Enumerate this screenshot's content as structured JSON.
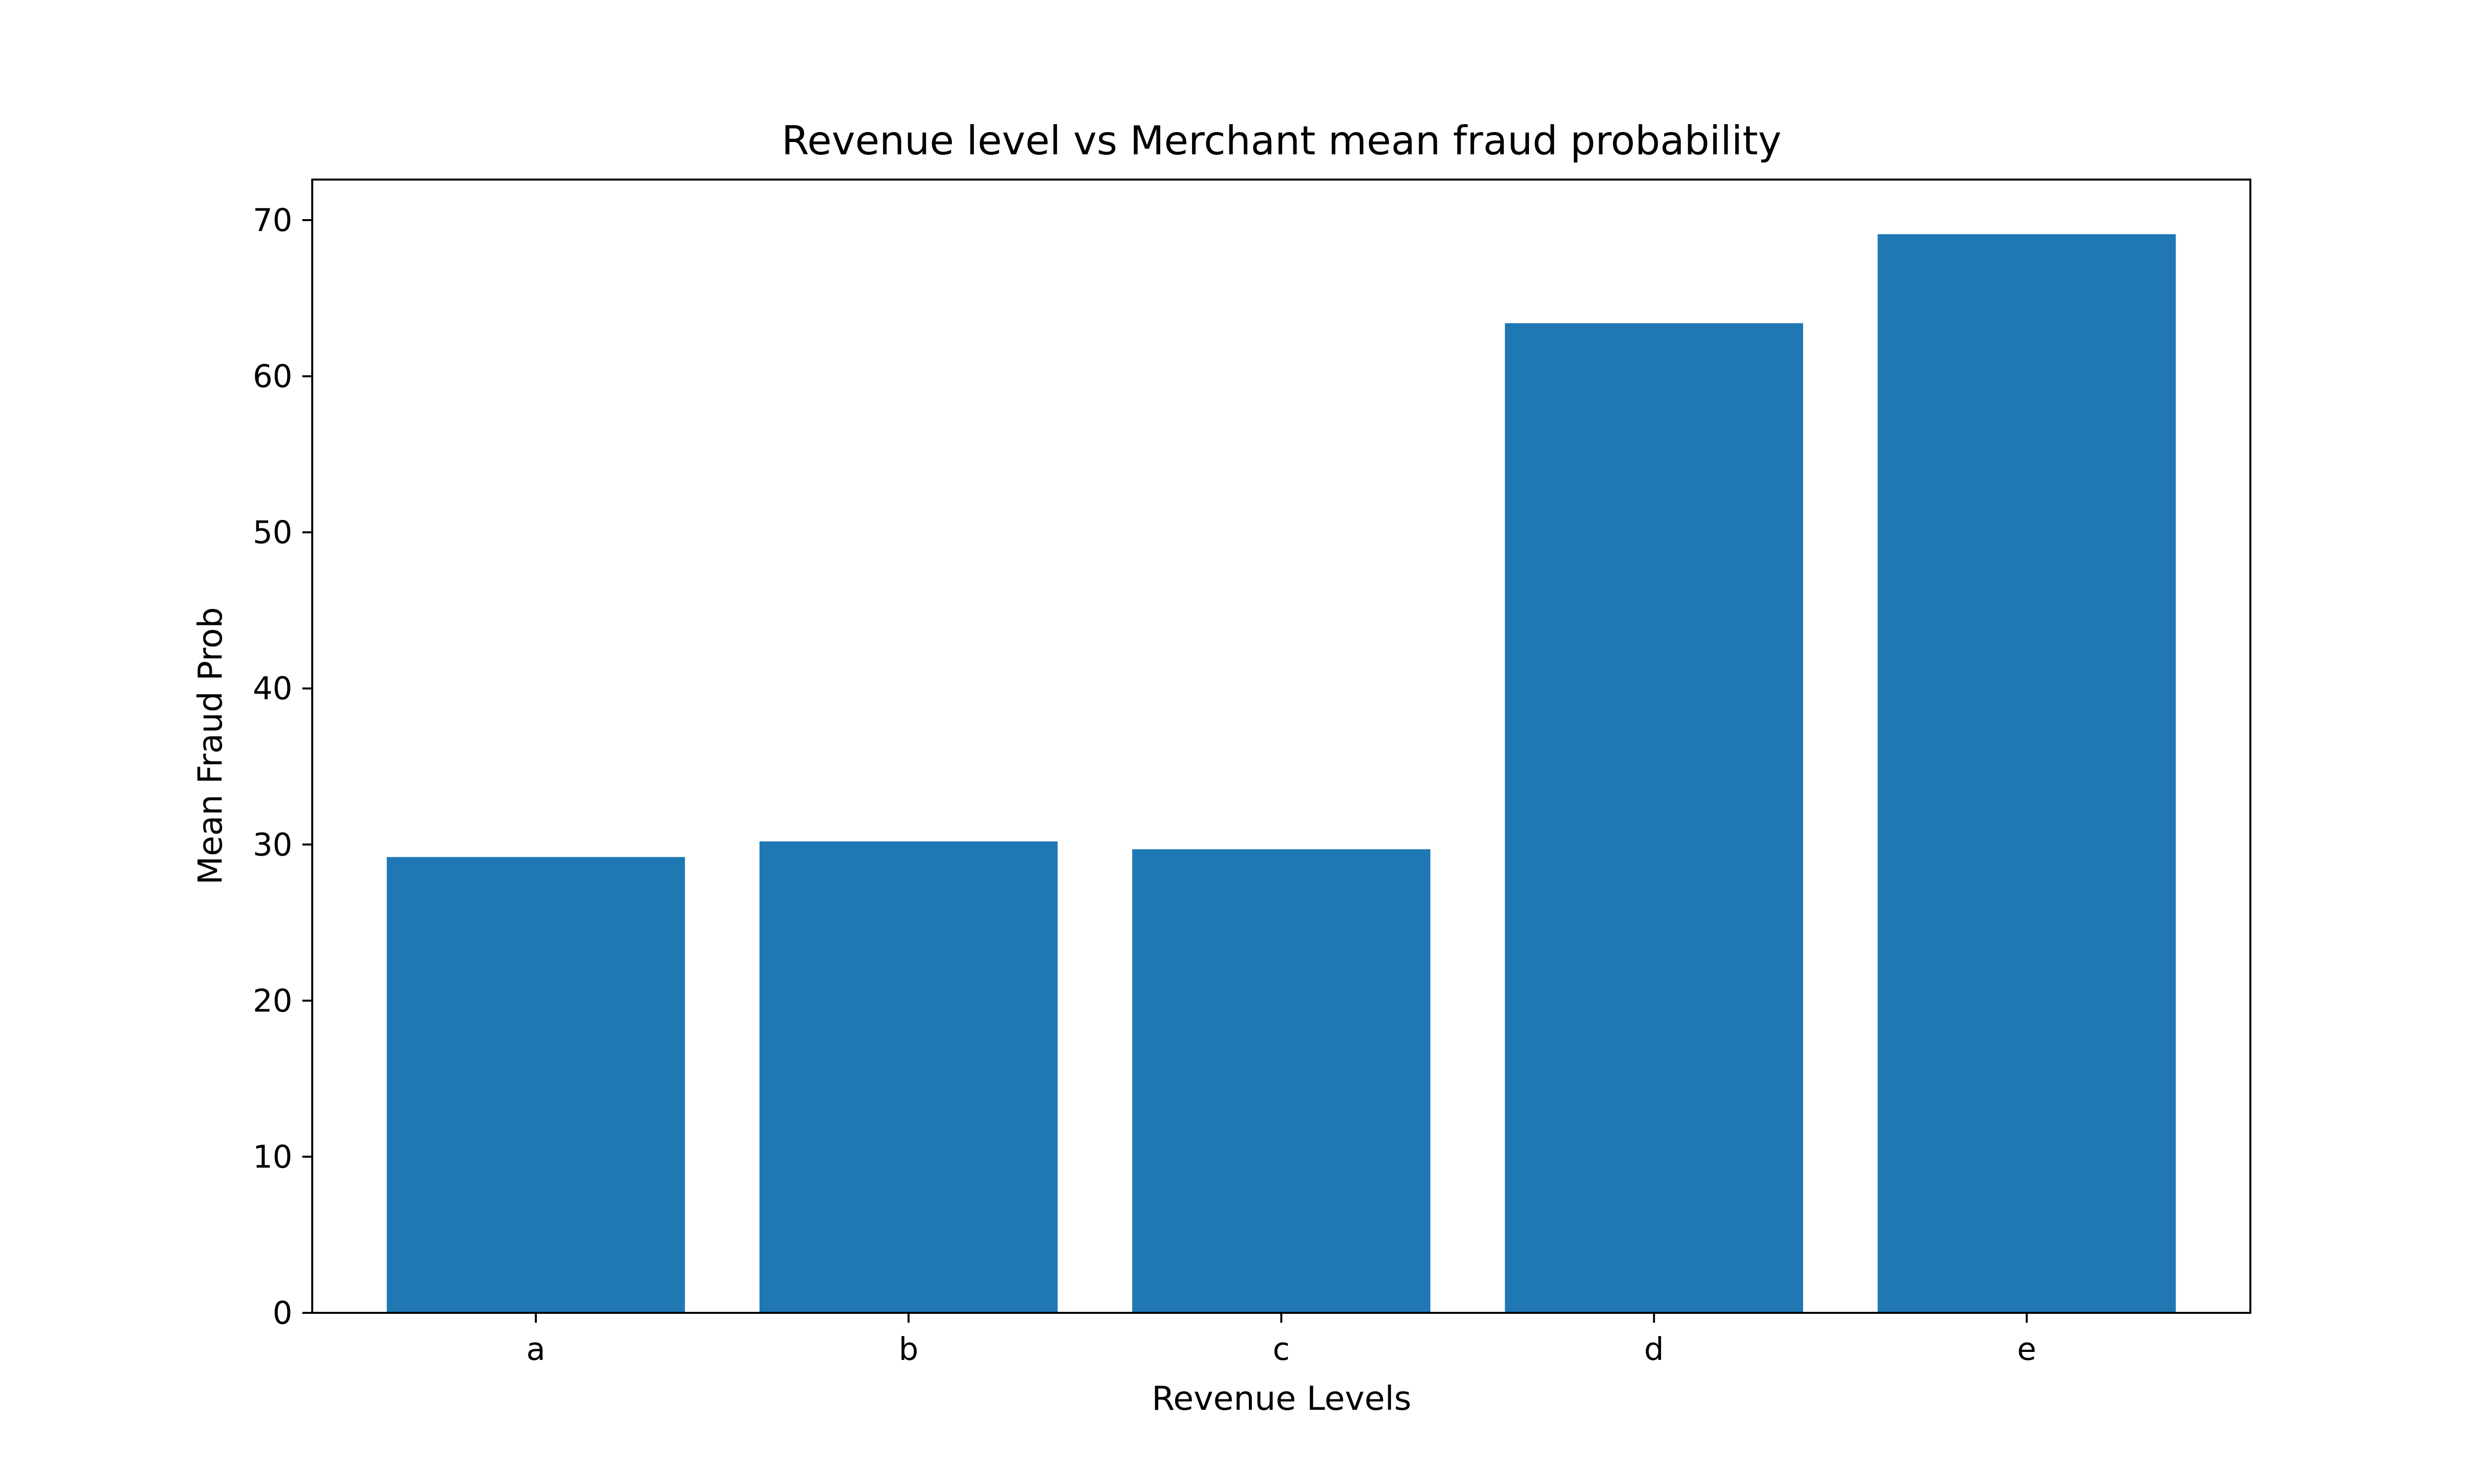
{
  "chart_data": {
    "type": "bar",
    "title": "Revenue level vs Merchant mean fraud probability",
    "xlabel": "Revenue Levels",
    "ylabel": "Mean Fraud Prob",
    "categories": [
      "a",
      "b",
      "c",
      "d",
      "e"
    ],
    "values": [
      29.2,
      30.2,
      29.7,
      63.4,
      69.1
    ],
    "ylim": [
      0,
      72.6
    ],
    "yticks": [
      0,
      10,
      20,
      30,
      40,
      50,
      60,
      70
    ],
    "grid": false,
    "legend": "none",
    "colors": {
      "bar": "#1f77b4",
      "axes": "#000000",
      "background": "#ffffff"
    }
  }
}
